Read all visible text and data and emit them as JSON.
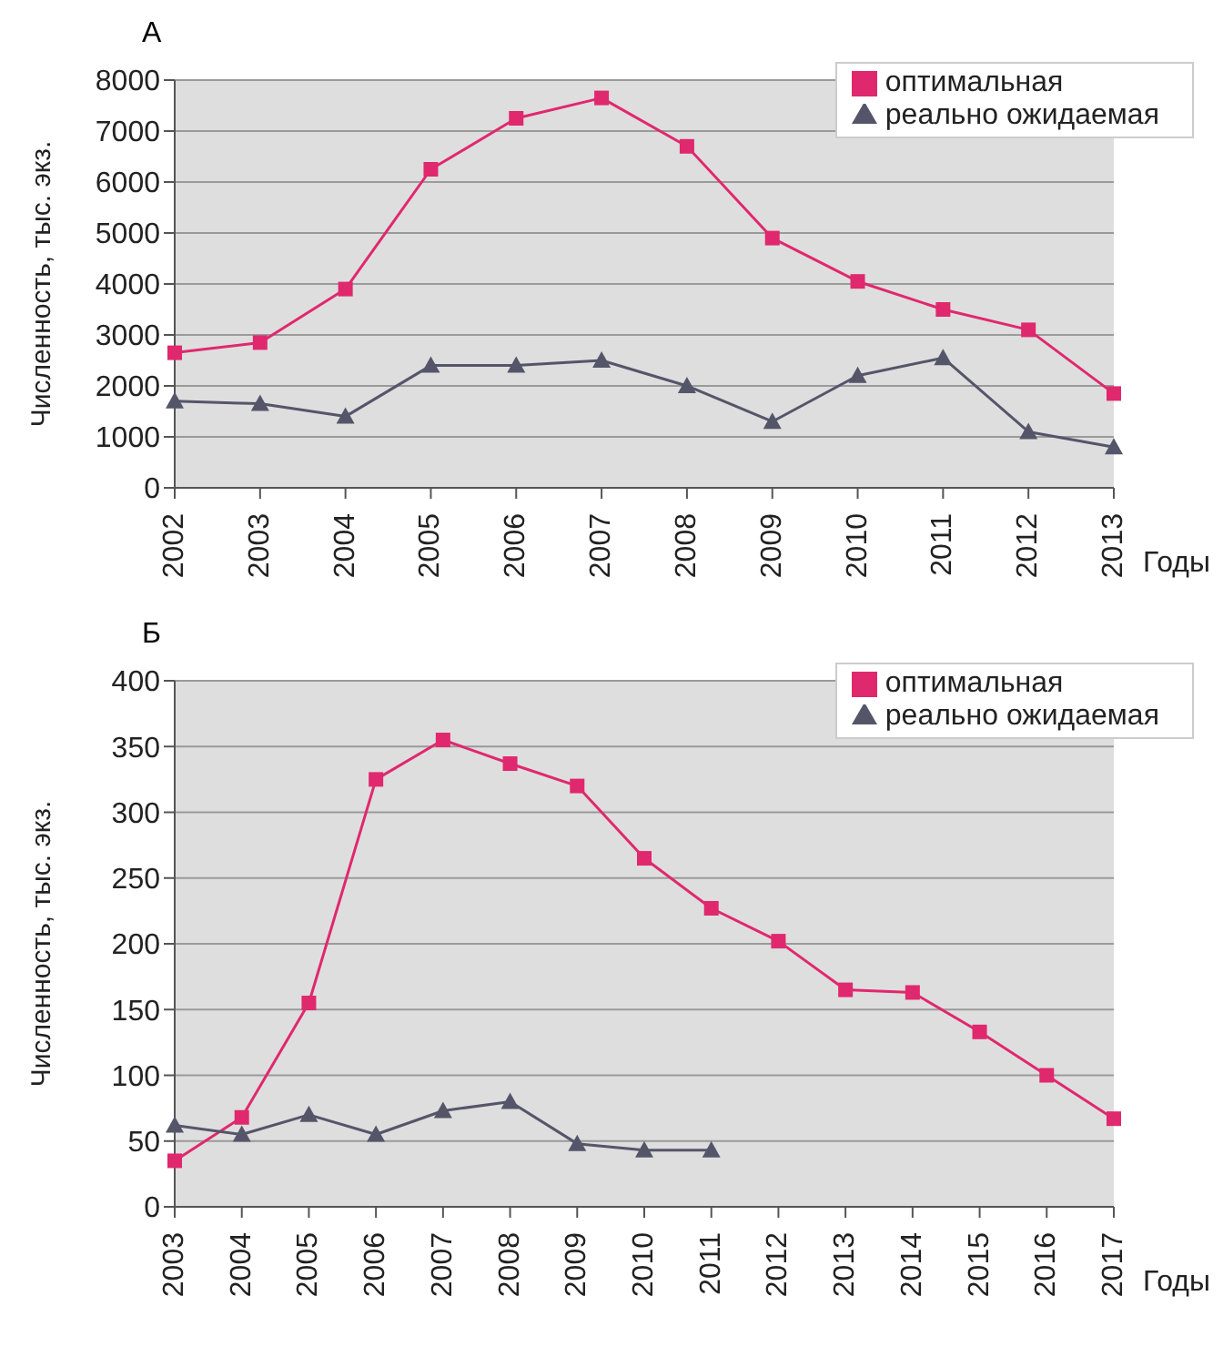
{
  "chart_data": [
    {
      "type": "line",
      "title": "А",
      "xlabel": "Годы",
      "ylabel": "Численность, тыс. экз.",
      "categories": [
        "2002",
        "2003",
        "2004",
        "2005",
        "2006",
        "2007",
        "2008",
        "2009",
        "2010",
        "2011",
        "2012",
        "2013"
      ],
      "series": [
        {
          "name": "оптимальная",
          "color": "#e0286e",
          "marker": "square",
          "values": [
            2650,
            2850,
            3900,
            6250,
            7250,
            7650,
            6700,
            4900,
            4050,
            3500,
            3100,
            1850
          ]
        },
        {
          "name": "реально ожидаемая",
          "color": "#55556a",
          "marker": "triangle",
          "values": [
            1700,
            1650,
            1400,
            2400,
            2400,
            2500,
            2000,
            1300,
            2200,
            2550,
            1100,
            800
          ]
        }
      ],
      "ylim": [
        0,
        8000
      ],
      "yticks": [
        0,
        1000,
        2000,
        3000,
        4000,
        5000,
        6000,
        7000,
        8000
      ],
      "grid": "y",
      "legend": "top right"
    },
    {
      "type": "line",
      "title": "Б",
      "xlabel": "Годы",
      "ylabel": "Численность, тыс. экз.",
      "categories": [
        "2003",
        "2004",
        "2005",
        "2006",
        "2007",
        "2008",
        "2009",
        "2010",
        "2011",
        "2012",
        "2013",
        "2014",
        "2015",
        "2016",
        "2017"
      ],
      "series": [
        {
          "name": "оптимальная",
          "color": "#e0286e",
          "marker": "square",
          "values": [
            35,
            68,
            155,
            325,
            355,
            337,
            320,
            265,
            227,
            202,
            165,
            163,
            133,
            100,
            67
          ]
        },
        {
          "name": "реально ожидаемая",
          "color": "#55556a",
          "marker": "triangle",
          "values": [
            62,
            55,
            70,
            55,
            73,
            80,
            48,
            43,
            43,
            null,
            null,
            null,
            null,
            null,
            null
          ]
        }
      ],
      "ylim": [
        0,
        400
      ],
      "yticks": [
        0,
        50,
        100,
        150,
        200,
        250,
        300,
        350,
        400
      ],
      "grid": "y",
      "legend": "top right"
    }
  ]
}
